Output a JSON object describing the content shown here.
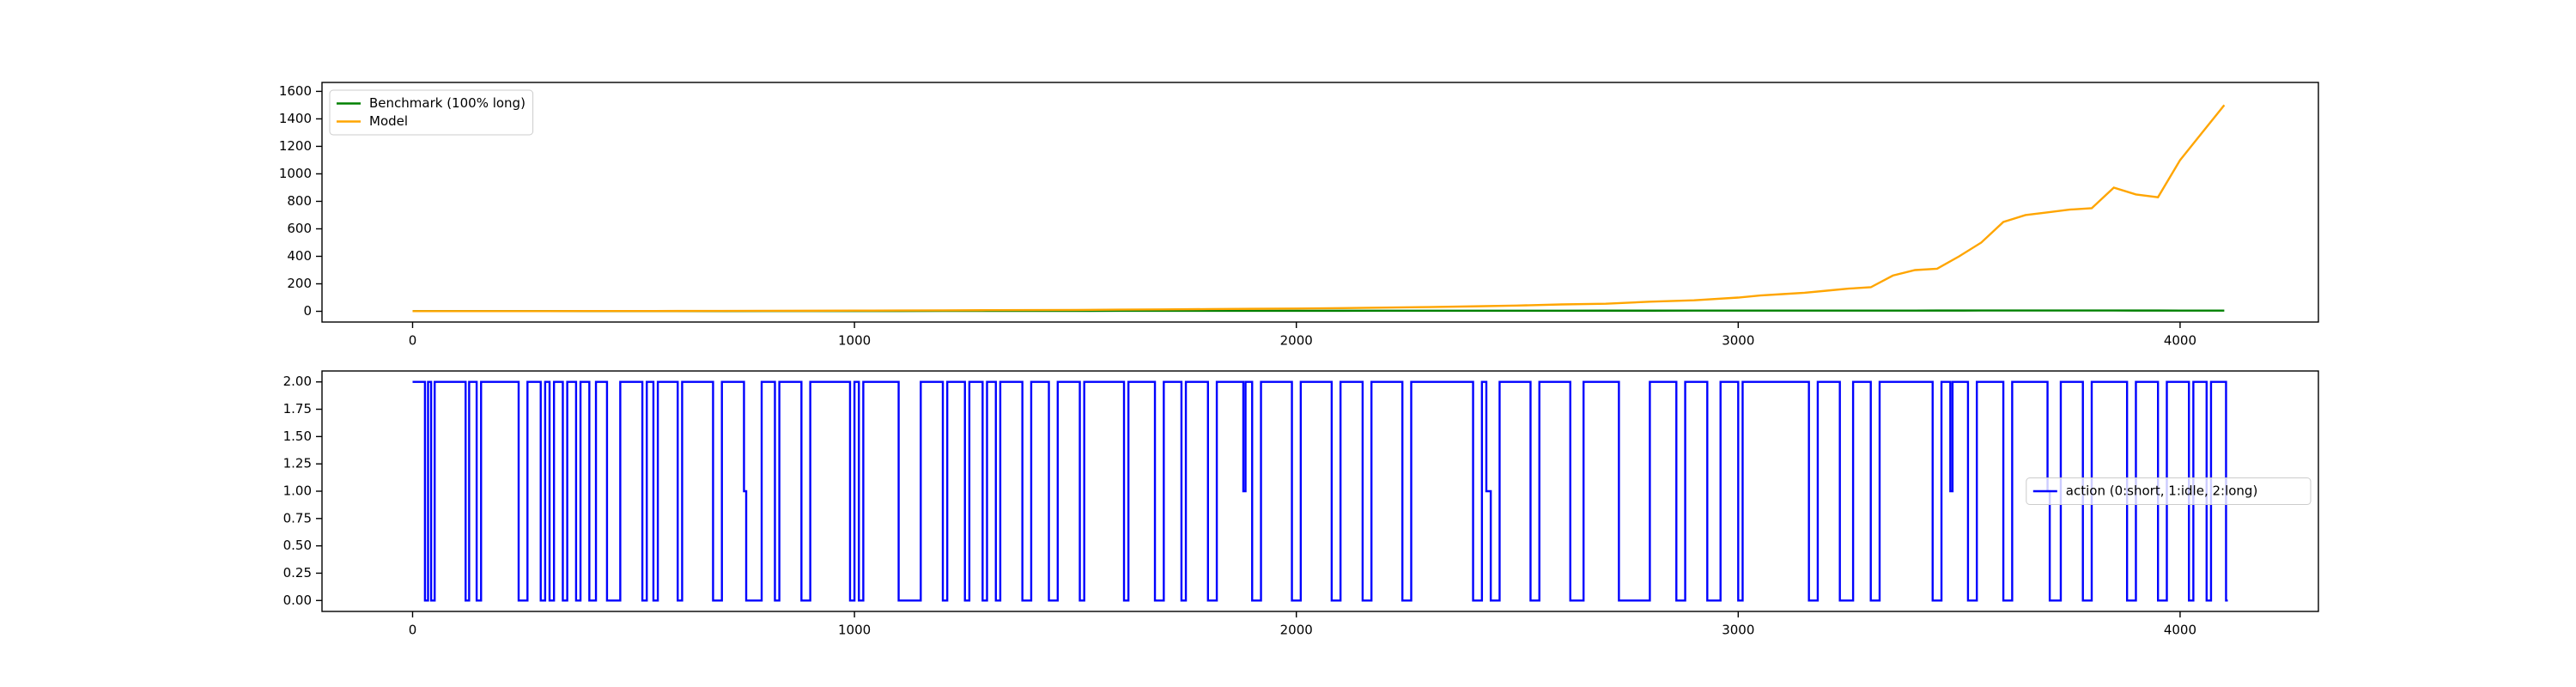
{
  "chart_data": [
    {
      "type": "line",
      "xlim": [
        -205,
        4313
      ],
      "ylim": [
        -78,
        1665
      ],
      "xticks": [
        0,
        1000,
        2000,
        3000,
        4000
      ],
      "yticks": [
        0,
        200,
        400,
        600,
        800,
        1000,
        1200,
        1400,
        1600
      ],
      "legend": "upper left",
      "x": [
        0,
        100,
        200,
        300,
        400,
        500,
        600,
        700,
        800,
        900,
        1000,
        1100,
        1200,
        1300,
        1400,
        1500,
        1600,
        1700,
        1800,
        1900,
        2000,
        2100,
        2200,
        2300,
        2400,
        2500,
        2600,
        2700,
        2800,
        2900,
        3000,
        3050,
        3100,
        3150,
        3200,
        3250,
        3300,
        3350,
        3400,
        3450,
        3500,
        3550,
        3600,
        3650,
        3700,
        3750,
        3800,
        3850,
        3900,
        3950,
        4000,
        4050,
        4100
      ],
      "series": [
        {
          "name": "Benchmark (100% long)",
          "color": "#008000",
          "values": [
            1,
            1,
            1.1,
            1.2,
            1.3,
            1.4,
            1.5,
            1.6,
            1.8,
            2,
            2.2,
            2.4,
            2.6,
            2.8,
            3,
            3.2,
            3.4,
            3.5,
            3.6,
            3.7,
            3.8,
            4,
            4.2,
            4.3,
            4.4,
            4.5,
            4.6,
            4.7,
            4.8,
            4.9,
            5,
            5,
            5.1,
            5.1,
            5.2,
            5.2,
            5.3,
            5.3,
            5.4,
            5.5,
            5.6,
            5.7,
            5.8,
            5.9,
            6,
            5.9,
            5.8,
            5.7,
            5.6,
            5.5,
            5.4,
            5.3,
            5.2
          ]
        },
        {
          "name": "Model",
          "color": "#ffa500",
          "values": [
            1,
            1,
            1.2,
            1.5,
            1.8,
            2,
            2.5,
            3,
            3.5,
            4,
            5,
            6,
            7,
            8,
            9,
            10,
            12,
            14,
            16,
            18,
            20,
            23,
            27,
            31,
            36,
            42,
            50,
            55,
            70,
            80,
            100,
            115,
            125,
            135,
            150,
            165,
            175,
            260,
            300,
            310,
            400,
            500,
            650,
            700,
            720,
            740,
            750,
            900,
            850,
            830,
            1100,
            1300,
            1500
          ]
        }
      ]
    },
    {
      "type": "line",
      "drawstyle": "steps-post",
      "xlim": [
        -205,
        4313
      ],
      "ylim": [
        -0.1,
        2.1
      ],
      "xticks": [
        0,
        1000,
        2000,
        3000,
        4000
      ],
      "yticks": [
        {
          "value": 0,
          "label": "0.00"
        },
        {
          "value": 0.25,
          "label": "0.25"
        },
        {
          "value": 0.5,
          "label": "0.50"
        },
        {
          "value": 0.75,
          "label": "0.75"
        },
        {
          "value": 1,
          "label": "1.00"
        },
        {
          "value": 1.25,
          "label": "1.25"
        },
        {
          "value": 1.5,
          "label": "1.50"
        },
        {
          "value": 1.75,
          "label": "1.75"
        },
        {
          "value": 2,
          "label": "2.00"
        }
      ],
      "legend": "center right",
      "x": [
        0,
        28,
        35,
        42,
        50,
        120,
        128,
        145,
        155,
        240,
        260,
        290,
        300,
        310,
        320,
        340,
        350,
        370,
        380,
        400,
        415,
        440,
        470,
        520,
        530,
        545,
        555,
        600,
        610,
        680,
        700,
        750,
        755,
        790,
        820,
        830,
        880,
        900,
        990,
        1000,
        1010,
        1020,
        1100,
        1150,
        1200,
        1210,
        1250,
        1260,
        1290,
        1300,
        1320,
        1330,
        1380,
        1400,
        1440,
        1460,
        1510,
        1520,
        1610,
        1620,
        1680,
        1700,
        1740,
        1750,
        1800,
        1820,
        1880,
        1885,
        1900,
        1920,
        1990,
        2010,
        2080,
        2100,
        2150,
        2170,
        2240,
        2260,
        2400,
        2420,
        2430,
        2440,
        2460,
        2530,
        2550,
        2620,
        2650,
        2730,
        2800,
        2860,
        2880,
        2930,
        2960,
        3000,
        3010,
        3160,
        3180,
        3230,
        3260,
        3300,
        3320,
        3440,
        3460,
        3480,
        3485,
        3520,
        3540,
        3600,
        3620,
        3700,
        3705,
        3730,
        3780,
        3800,
        3880,
        3900,
        3950,
        3970,
        4020,
        4030,
        4060,
        4070,
        4104,
        4108
      ],
      "series": [
        {
          "name": "action (0:short, 1:idle, 2:long)",
          "color": "#0000ff",
          "values": [
            2,
            0,
            2,
            0,
            2,
            0,
            2,
            0,
            2,
            0,
            2,
            0,
            2,
            0,
            2,
            0,
            2,
            0,
            2,
            0,
            2,
            0,
            2,
            0,
            2,
            0,
            2,
            0,
            2,
            0,
            2,
            1,
            0,
            2,
            0,
            2,
            0,
            2,
            0,
            2,
            0,
            2,
            0,
            2,
            0,
            2,
            0,
            2,
            0,
            2,
            0,
            2,
            0,
            2,
            0,
            2,
            0,
            2,
            0,
            2,
            0,
            2,
            0,
            2,
            0,
            2,
            1,
            2,
            0,
            2,
            0,
            2,
            0,
            2,
            0,
            2,
            0,
            2,
            0,
            2,
            1,
            0,
            2,
            0,
            2,
            0,
            2,
            0,
            2,
            0,
            2,
            0,
            2,
            0,
            2,
            0,
            2,
            0,
            2,
            0,
            2,
            0,
            2,
            1,
            2,
            0,
            2,
            0,
            2,
            1,
            0,
            2,
            0,
            2,
            0,
            2,
            0,
            2,
            0,
            2,
            0,
            2,
            0,
            0
          ]
        }
      ]
    }
  ]
}
